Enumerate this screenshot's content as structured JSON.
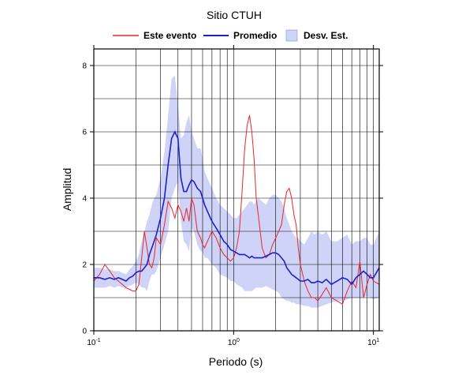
{
  "chart_data": {
    "type": "area",
    "title": "Sitio CTUH",
    "xlabel": "Periodo (s)",
    "ylabel": "Amplitud",
    "xscale": "log",
    "xlim": [
      0.1,
      11
    ],
    "ylim": [
      0,
      8.5
    ],
    "x_ticks": [
      {
        "base": "10",
        "exp": "-1",
        "value": 0.1
      },
      {
        "base": "10",
        "exp": "0",
        "value": 1
      },
      {
        "base": "10",
        "exp": "1",
        "value": 10
      }
    ],
    "y_ticks": [
      0,
      2,
      4,
      6,
      8
    ],
    "grid": true,
    "legend": {
      "position": "top",
      "entries": [
        "Este evento",
        "Promedio",
        "Desv. Est."
      ]
    },
    "colors": {
      "este_evento": "#e8262b",
      "promedio": "#1f1fcf",
      "desv_est": "#cfd3f7"
    },
    "series": [
      {
        "name": "Este evento",
        "x": [
          0.1,
          0.11,
          0.12,
          0.13,
          0.14,
          0.15,
          0.16,
          0.17,
          0.18,
          0.19,
          0.2,
          0.21,
          0.22,
          0.23,
          0.24,
          0.25,
          0.26,
          0.27,
          0.28,
          0.3,
          0.32,
          0.34,
          0.36,
          0.38,
          0.4,
          0.42,
          0.44,
          0.46,
          0.48,
          0.5,
          0.52,
          0.55,
          0.58,
          0.6,
          0.62,
          0.65,
          0.7,
          0.75,
          0.8,
          0.85,
          0.9,
          0.95,
          1.0,
          1.05,
          1.1,
          1.15,
          1.2,
          1.25,
          1.3,
          1.35,
          1.4,
          1.45,
          1.5,
          1.6,
          1.7,
          1.8,
          1.9,
          2.0,
          2.1,
          2.2,
          2.3,
          2.4,
          2.5,
          2.6,
          2.7,
          2.8,
          2.9,
          3.0,
          3.2,
          3.4,
          3.6,
          3.8,
          4.0,
          4.3,
          4.6,
          5.0,
          5.5,
          6.0,
          6.5,
          7.0,
          7.5,
          8.0,
          8.5,
          9.0,
          9.5,
          10.0,
          11.0
        ],
        "values": [
          1.5,
          1.7,
          2.0,
          1.8,
          1.6,
          1.5,
          1.4,
          1.3,
          1.25,
          1.2,
          1.2,
          1.4,
          2.2,
          3.0,
          2.5,
          2.0,
          1.9,
          2.2,
          2.8,
          2.6,
          3.2,
          3.9,
          3.7,
          3.4,
          3.8,
          3.6,
          3.3,
          3.7,
          3.3,
          4.0,
          3.8,
          3.0,
          2.8,
          2.6,
          2.5,
          2.7,
          3.0,
          2.8,
          2.5,
          2.3,
          2.2,
          2.1,
          2.2,
          2.5,
          3.0,
          4.2,
          5.5,
          6.2,
          6.5,
          6.0,
          5.2,
          4.0,
          3.5,
          2.5,
          2.2,
          2.3,
          2.6,
          2.8,
          3.0,
          3.2,
          3.8,
          4.2,
          4.3,
          4.0,
          3.5,
          3.2,
          2.5,
          2.0,
          1.5,
          1.2,
          1.0,
          1.0,
          0.9,
          1.1,
          1.3,
          1.0,
          0.9,
          0.8,
          1.2,
          1.5,
          1.3,
          2.1,
          1.0,
          1.4,
          1.7,
          1.5,
          1.4
        ]
      },
      {
        "name": "Promedio",
        "x": [
          0.1,
          0.11,
          0.12,
          0.13,
          0.14,
          0.15,
          0.16,
          0.17,
          0.18,
          0.19,
          0.2,
          0.21,
          0.22,
          0.23,
          0.24,
          0.25,
          0.26,
          0.27,
          0.28,
          0.3,
          0.32,
          0.34,
          0.36,
          0.38,
          0.4,
          0.42,
          0.44,
          0.46,
          0.48,
          0.5,
          0.52,
          0.55,
          0.58,
          0.6,
          0.62,
          0.65,
          0.7,
          0.75,
          0.8,
          0.85,
          0.9,
          0.95,
          1.0,
          1.05,
          1.1,
          1.15,
          1.2,
          1.25,
          1.3,
          1.35,
          1.4,
          1.45,
          1.5,
          1.6,
          1.7,
          1.8,
          1.9,
          2.0,
          2.1,
          2.2,
          2.3,
          2.4,
          2.5,
          2.6,
          2.7,
          2.8,
          2.9,
          3.0,
          3.2,
          3.4,
          3.6,
          3.8,
          4.0,
          4.3,
          4.6,
          5.0,
          5.5,
          6.0,
          6.5,
          7.0,
          7.5,
          8.0,
          8.5,
          9.0,
          9.5,
          10.0,
          11.0
        ],
        "values": [
          1.6,
          1.6,
          1.55,
          1.6,
          1.55,
          1.6,
          1.55,
          1.5,
          1.6,
          1.65,
          1.75,
          1.8,
          1.8,
          1.9,
          2.0,
          2.3,
          2.5,
          2.7,
          2.9,
          3.4,
          4.0,
          5.0,
          5.8,
          6.0,
          5.8,
          4.6,
          4.2,
          4.2,
          4.4,
          4.55,
          4.5,
          4.3,
          4.2,
          4.0,
          3.8,
          3.6,
          3.3,
          3.1,
          2.9,
          2.7,
          2.6,
          2.45,
          2.4,
          2.35,
          2.3,
          2.3,
          2.3,
          2.25,
          2.2,
          2.25,
          2.2,
          2.2,
          2.2,
          2.2,
          2.25,
          2.3,
          2.35,
          2.35,
          2.3,
          2.2,
          2.1,
          1.9,
          1.8,
          1.7,
          1.65,
          1.6,
          1.55,
          1.5,
          1.5,
          1.55,
          1.45,
          1.45,
          1.5,
          1.45,
          1.55,
          1.4,
          1.5,
          1.6,
          1.55,
          1.4,
          1.6,
          1.7,
          1.8,
          1.7,
          1.6,
          1.6,
          1.9
        ]
      }
    ],
    "band": {
      "name": "Desv. Est.",
      "x": [
        0.1,
        0.11,
        0.12,
        0.13,
        0.14,
        0.15,
        0.16,
        0.17,
        0.18,
        0.19,
        0.2,
        0.21,
        0.22,
        0.23,
        0.24,
        0.25,
        0.26,
        0.27,
        0.28,
        0.3,
        0.32,
        0.34,
        0.36,
        0.38,
        0.4,
        0.42,
        0.44,
        0.46,
        0.48,
        0.5,
        0.52,
        0.55,
        0.58,
        0.6,
        0.62,
        0.65,
        0.7,
        0.75,
        0.8,
        0.85,
        0.9,
        0.95,
        1.0,
        1.05,
        1.1,
        1.15,
        1.2,
        1.25,
        1.3,
        1.35,
        1.4,
        1.45,
        1.5,
        1.6,
        1.7,
        1.8,
        1.9,
        2.0,
        2.1,
        2.2,
        2.3,
        2.4,
        2.5,
        2.6,
        2.7,
        2.8,
        2.9,
        3.0,
        3.2,
        3.4,
        3.6,
        3.8,
        4.0,
        4.3,
        4.6,
        5.0,
        5.5,
        6.0,
        6.5,
        7.0,
        7.5,
        8.0,
        8.5,
        9.0,
        9.5,
        10.0,
        11.0
      ],
      "upper": [
        1.9,
        1.9,
        1.85,
        1.85,
        1.8,
        1.8,
        1.75,
        1.7,
        1.85,
        1.95,
        2.1,
        2.3,
        2.7,
        3.0,
        3.3,
        3.5,
        3.8,
        4.0,
        4.1,
        4.6,
        5.4,
        6.5,
        7.6,
        7.7,
        6.8,
        5.8,
        5.9,
        6.3,
        6.5,
        6.0,
        5.8,
        5.5,
        5.5,
        5.2,
        4.8,
        4.6,
        4.3,
        4.0,
        3.8,
        3.7,
        3.6,
        3.5,
        3.4,
        3.4,
        3.5,
        3.6,
        3.7,
        3.8,
        3.9,
        3.9,
        3.8,
        3.9,
        4.0,
        3.9,
        3.8,
        4.0,
        4.1,
        4.1,
        4.0,
        3.9,
        3.7,
        3.4,
        3.2,
        3.0,
        2.9,
        2.8,
        2.8,
        2.7,
        2.6,
        2.8,
        3.0,
        2.9,
        3.0,
        2.9,
        3.0,
        2.7,
        2.7,
        2.8,
        2.9,
        2.6,
        2.7,
        2.7,
        2.8,
        2.8,
        2.6,
        2.6,
        3.0
      ],
      "lower": [
        1.3,
        1.3,
        1.3,
        1.35,
        1.3,
        1.35,
        1.3,
        1.3,
        1.35,
        1.4,
        1.45,
        1.4,
        1.3,
        1.3,
        1.2,
        1.5,
        1.7,
        1.7,
        1.8,
        2.2,
        2.6,
        3.0,
        4.0,
        4.3,
        4.5,
        3.3,
        2.7,
        2.6,
        2.4,
        3.1,
        3.0,
        2.6,
        2.4,
        2.4,
        2.2,
        2.2,
        2.0,
        1.9,
        1.7,
        1.65,
        1.6,
        1.5,
        1.5,
        1.4,
        1.35,
        1.3,
        1.2,
        1.2,
        1.2,
        1.2,
        1.25,
        1.3,
        1.3,
        1.3,
        1.35,
        1.3,
        1.25,
        1.2,
        1.15,
        1.0,
        0.95,
        0.9,
        0.9,
        0.85,
        0.85,
        0.8,
        0.8,
        0.8,
        0.75,
        0.75,
        0.7,
        0.7,
        0.7,
        0.75,
        0.8,
        0.85,
        0.9,
        0.9,
        0.95,
        1.0,
        1.0,
        1.0,
        1.0,
        1.05,
        1.0,
        0.95,
        1.0
      ]
    }
  }
}
